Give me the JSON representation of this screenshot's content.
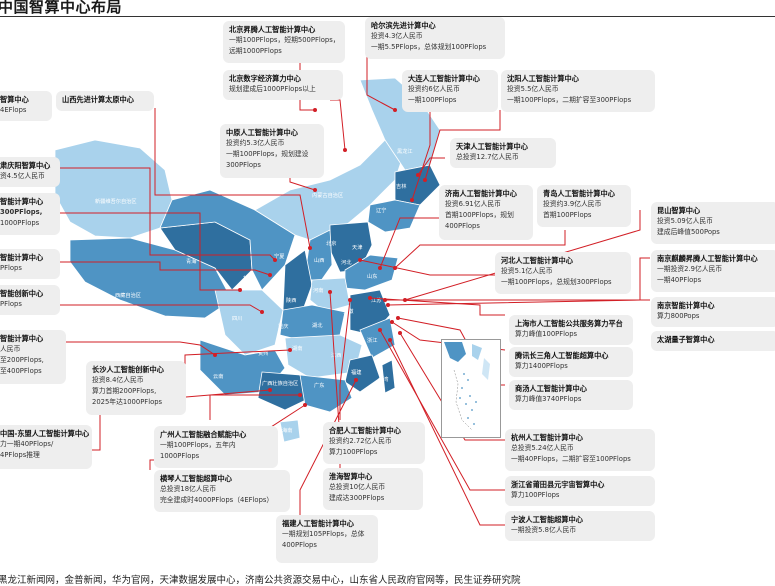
{
  "title": "中国智算中心布局",
  "source": "黑龙江新闻网，金普新闻，华为官网，天津数据发展中心，济南公共资源交易中心，山东省人民政府官网等，民生证券研究院",
  "map": {
    "colors": {
      "dark": "#2f6f9f",
      "mid": "#4f94c4",
      "light": "#a9d2ec",
      "pale": "#cfe6f5",
      "connector": "#d21f26"
    },
    "province_labels": [
      "新疆维吾尔自治区",
      "内蒙古自治区",
      "西藏自治区",
      "青海",
      "甘肃",
      "四川",
      "云南",
      "贵州",
      "广西壮族自治区",
      "广东",
      "海南",
      "湖南",
      "湖北",
      "江西",
      "福建",
      "浙江",
      "安徽",
      "江苏",
      "山东",
      "河南",
      "山西",
      "河北",
      "北京",
      "天津",
      "辽宁",
      "吉林",
      "黑龙江",
      "陕西",
      "重庆",
      "宁夏",
      "台湾"
    ]
  },
  "boxes": [
    {
      "id": "beijing-shengteng",
      "title": "北京昇腾人工智能计算中心",
      "lines": [
        "一期100PFlops，短期500PFlops，",
        "远期1000PFlops"
      ]
    },
    {
      "id": "harbin",
      "title": "哈尔滨先进计算中心",
      "lines": [
        "投资4.3亿人民币",
        "一期5.5PFlops，总体规划100PFlops"
      ]
    },
    {
      "id": "beijing-digital",
      "title": "北京数字经济算力中心",
      "lines": [
        "规划建成后1000PFlops以上"
      ]
    },
    {
      "id": "dalian",
      "title": "大连人工智能计算中心",
      "lines": [
        "投资约6亿人民币",
        "一期100PFlops"
      ]
    },
    {
      "id": "shenyang",
      "title": "沈阳人工智能计算中心",
      "lines": [
        "投资5.5亿人民币",
        "一期100PFlops，二期扩容至300PFlops"
      ]
    },
    {
      "id": "left-1",
      "title": "智算中心",
      "lines": [
        "4EFlops"
      ]
    },
    {
      "id": "shanxi",
      "title": "山西先进计算太原中心",
      "lines": []
    },
    {
      "id": "zhongyuan",
      "title": "中原人工智能计算中心",
      "lines": [
        "投资约5.3亿人民币",
        "一期100PFlops，规划建设",
        "300PFlops"
      ]
    },
    {
      "id": "tianjin",
      "title": "天津人工智能计算中心",
      "lines": [
        "总投资12.7亿人民币"
      ]
    },
    {
      "id": "left-2",
      "title": "肃庆阳智算中心",
      "lines": [
        "资4.5亿人民币"
      ]
    },
    {
      "id": "left-3",
      "title": "智能计算中心",
      "lines": [
        "300PFlops,",
        "1000PFlops"
      ]
    },
    {
      "id": "jinan",
      "title": "济南人工智能计算中心",
      "lines": [
        "投资6.91亿人民币",
        "首期100PFlops，规划",
        "400PFlops"
      ]
    },
    {
      "id": "qingdao",
      "title": "青岛人工智能计算中心",
      "lines": [
        "投资约3.9亿人民币",
        "首期100PFlops"
      ]
    },
    {
      "id": "kunshan",
      "title": "昆山智算中心",
      "lines": [
        "投资5.09亿人民币",
        "建成后峰值500Pops"
      ]
    },
    {
      "id": "left-4",
      "title": "智能计算中心",
      "lines": [
        "PFlops"
      ]
    },
    {
      "id": "hebei",
      "title": "河北人工智能计算中心",
      "lines": [
        "投资5.1亿人民币",
        "一期100PFlops，总规划300PFlops"
      ]
    },
    {
      "id": "nanjing-qilin",
      "title": "南京麒麟昇腾人工智能计算中心",
      "lines": [
        "一期投资2.9亿人民币",
        "一期40PFlops"
      ]
    },
    {
      "id": "left-5",
      "title": "智能创新中心",
      "lines": [
        "PFlops"
      ]
    },
    {
      "id": "shanghai",
      "title": "上海市人工智能公共服务算力平台",
      "lines": [
        "算力峰值100PFlops"
      ]
    },
    {
      "id": "nanjing-zhisuan",
      "title": "南京智能计算中心",
      "lines": [
        "算力800Pops"
      ]
    },
    {
      "id": "left-6",
      "title": "智能计算中心",
      "lines": [
        "人民币",
        "至200PFlops,",
        "至400PFlops"
      ]
    },
    {
      "id": "changsha",
      "title": "长沙人工智能创新中心",
      "lines": [
        "投资8.4亿人民币",
        "算力首期200PFlops,",
        "2025年达1000PFlops"
      ]
    },
    {
      "id": "tencent",
      "title": "腾讯长三角人工智能超算中心",
      "lines": [
        "算力1400PFlops"
      ]
    },
    {
      "id": "taihu",
      "title": "太湖量子智算中心",
      "lines": []
    },
    {
      "id": "shangtang",
      "title": "商汤人工智能计算中心",
      "lines": [
        "算力峰值3740PFlops"
      ]
    },
    {
      "id": "left-7",
      "title": "中国-东盟人工智能计算中心",
      "lines": [
        "力一期40PFlops/",
        "4PFlops推理"
      ]
    },
    {
      "id": "guangzhou",
      "title": "广州人工智能融合赋能中心",
      "lines": [
        "一期100PFlops，五年内",
        "1000PFlops"
      ]
    },
    {
      "id": "hefei",
      "title": "合肥人工智能计算中心",
      "lines": [
        "投资约2.72亿人民币",
        "算力100PFlops"
      ]
    },
    {
      "id": "hangzhou",
      "title": "杭州人工智能计算中心",
      "lines": [
        "总投资5.24亿人民币",
        "一期40PFlops，二期扩容至100PFlops"
      ]
    },
    {
      "id": "hengqin",
      "title": "横琴人工智能超算中心",
      "lines": [
        "总投资18亿人民币",
        "完全建成时4000PFlops（4EFlops）"
      ]
    },
    {
      "id": "huaihai",
      "title": "淮海智算中心",
      "lines": [
        "总投资10亿人民币",
        "建成达300PFlops"
      ]
    },
    {
      "id": "putian",
      "title": "浙江省莆田县元宇宙智算中心",
      "lines": [
        "算力100PFlops"
      ]
    },
    {
      "id": "fujian",
      "title": "福建人工智能计算中心",
      "lines": [
        "一期规划105PFlops，总体",
        "400PFlops"
      ]
    },
    {
      "id": "ningbo",
      "title": "宁波人工智能超算中心",
      "lines": [
        "一期投资5.8亿人民币"
      ]
    }
  ]
}
